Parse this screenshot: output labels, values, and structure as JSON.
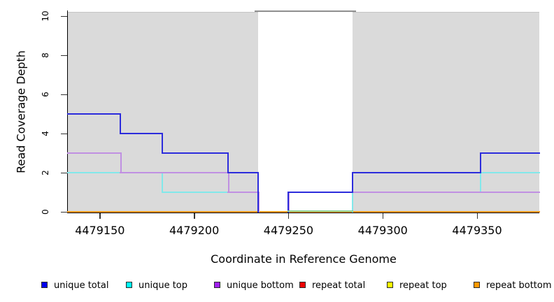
{
  "chart_data": {
    "type": "line",
    "subtype": "step-coverage-plot",
    "title": "",
    "xlabel": "Coordinate in Reference Genome",
    "ylabel": "Read Coverage Depth",
    "xlim": [
      4479133,
      4479383
    ],
    "ylim": [
      0,
      10
    ],
    "x_ticks": [
      4479150,
      4479200,
      4479250,
      4479300,
      4479350
    ],
    "y_ticks": [
      0,
      2,
      4,
      6,
      8,
      10
    ],
    "grid": "off",
    "legend_position": "bottom",
    "background_regions": [
      {
        "name": "shaded-region-left",
        "x1": 4479133,
        "x2": 4479234,
        "fill": "#DADADA"
      },
      {
        "name": "unshaded-gap",
        "x1": 4479234,
        "x2": 4479284,
        "fill": "#FFFFFF",
        "top_line_color": "#8F8F8F"
      },
      {
        "name": "shaded-region-right",
        "x1": 4479284,
        "x2": 4479383,
        "fill": "#DADADA"
      }
    ],
    "series": [
      {
        "name": "repeat total",
        "line_color": "#DD0000",
        "legend_color": "#EE0000",
        "steps": [
          [
            4479133,
            0
          ]
        ],
        "end_x": 4479383,
        "hide_zero_runs": false
      },
      {
        "name": "repeat top",
        "line_color": "#FFFF00",
        "legend_color": "#FFFF00",
        "steps": [
          [
            4479133,
            0
          ]
        ],
        "end_x": 4479383,
        "hide_zero_runs": false
      },
      {
        "name": "repeat bottom",
        "line_color": "#FF9914",
        "legend_color": "#FF9900",
        "steps": [
          [
            4479133,
            0
          ]
        ],
        "end_x": 4479383,
        "hide_zero_runs": false
      },
      {
        "name": "unique top",
        "line_color": "#82E8EA",
        "legend_color": "#00FFFF",
        "steps": [
          [
            4479133,
            2
          ],
          [
            4479183,
            1
          ],
          [
            4479234,
            0
          ],
          [
            4479284,
            1
          ],
          [
            4479352,
            2
          ]
        ],
        "end_x": 4479383,
        "hide_zero_runs": true
      },
      {
        "name": "unique bottom",
        "line_color": "#C090E2",
        "legend_color": "#A020F0",
        "steps": [
          [
            4479133,
            3
          ],
          [
            4479161,
            2
          ],
          [
            4479218,
            1
          ],
          [
            4479234,
            0
          ],
          [
            4479250,
            1
          ]
        ],
        "end_x": 4479383,
        "hide_zero_runs": true,
        "x_offset": 1
      },
      {
        "name": "unique total",
        "line_color": "#2C2CDC",
        "legend_color": "#0000EE",
        "steps": [
          [
            4479133,
            5
          ],
          [
            4479161,
            4
          ],
          [
            4479183,
            3
          ],
          [
            4479218,
            2
          ],
          [
            4479234,
            0
          ],
          [
            4479250,
            1
          ],
          [
            4479284,
            2
          ],
          [
            4479352,
            3
          ]
        ],
        "end_x": 4479383,
        "hide_zero_runs": true
      }
    ],
    "overlap_segments": [
      {
        "x1": 4479250,
        "x2": 4479284,
        "depth": 0,
        "color": "#85CD8F",
        "note": "pale green where unique top / repeat top overlap at depth 0"
      }
    ],
    "legend": [
      {
        "label": "unique total",
        "color": "#0000EE"
      },
      {
        "label": "unique top",
        "color": "#00FFFF"
      },
      {
        "label": "unique bottom",
        "color": "#A020F0"
      },
      {
        "label": "repeat total",
        "color": "#EE0000"
      },
      {
        "label": "repeat top",
        "color": "#FFFF00"
      },
      {
        "label": "repeat bottom",
        "color": "#FF9900"
      }
    ],
    "axis_color": "#000000",
    "tick_color": "#333333"
  }
}
